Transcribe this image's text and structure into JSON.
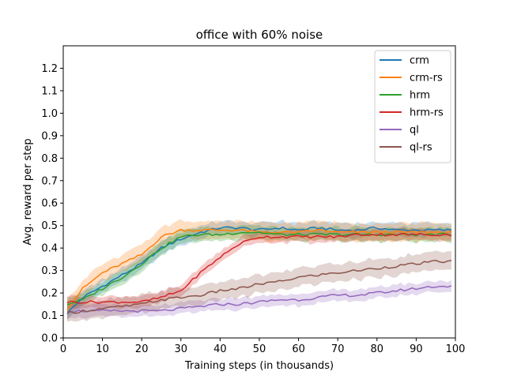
{
  "chart_data": {
    "type": "line",
    "title": "office with 60% noise",
    "xlabel": "Training steps (in thousands)",
    "ylabel": "Avg. reward per step",
    "xlim": [
      0,
      100
    ],
    "ylim": [
      0,
      1.3
    ],
    "xticks": [
      0,
      10,
      20,
      30,
      40,
      50,
      60,
      70,
      80,
      90,
      100
    ],
    "yticks": [
      0.0,
      0.1,
      0.2,
      0.3,
      0.4,
      0.5,
      0.6,
      0.7,
      0.8,
      0.9,
      1.0,
      1.1,
      1.2
    ],
    "grid": false,
    "legend_position": "top-right",
    "x": [
      1,
      5,
      10,
      15,
      20,
      25,
      30,
      35,
      40,
      45,
      50,
      55,
      60,
      65,
      70,
      75,
      80,
      85,
      90,
      95,
      99
    ],
    "series": [
      {
        "name": "crm",
        "color": "#1f77b4",
        "values": [
          0.11,
          0.18,
          0.23,
          0.28,
          0.33,
          0.4,
          0.44,
          0.47,
          0.49,
          0.49,
          0.48,
          0.49,
          0.48,
          0.49,
          0.48,
          0.48,
          0.49,
          0.48,
          0.48,
          0.48,
          0.48
        ],
        "band": 0.03
      },
      {
        "name": "crm-rs",
        "color": "#ff7f0e",
        "values": [
          0.13,
          0.22,
          0.29,
          0.33,
          0.37,
          0.45,
          0.48,
          0.48,
          0.48,
          0.48,
          0.47,
          0.47,
          0.47,
          0.48,
          0.47,
          0.47,
          0.47,
          0.47,
          0.47,
          0.47,
          0.47
        ],
        "band": 0.04
      },
      {
        "name": "hrm",
        "color": "#2ca02c",
        "values": [
          0.15,
          0.17,
          0.22,
          0.27,
          0.33,
          0.4,
          0.45,
          0.46,
          0.46,
          0.47,
          0.47,
          0.46,
          0.46,
          0.46,
          0.46,
          0.46,
          0.46,
          0.46,
          0.46,
          0.46,
          0.46
        ],
        "band": 0.03
      },
      {
        "name": "hrm-rs",
        "color": "#d62728",
        "values": [
          0.16,
          0.16,
          0.16,
          0.16,
          0.16,
          0.18,
          0.21,
          0.29,
          0.36,
          0.42,
          0.45,
          0.45,
          0.45,
          0.45,
          0.45,
          0.46,
          0.46,
          0.46,
          0.46,
          0.46,
          0.46
        ],
        "band": 0.025
      },
      {
        "name": "ql",
        "color": "#9467bd",
        "values": [
          0.12,
          0.12,
          0.12,
          0.12,
          0.12,
          0.12,
          0.13,
          0.14,
          0.15,
          0.15,
          0.16,
          0.17,
          0.17,
          0.18,
          0.19,
          0.19,
          0.2,
          0.21,
          0.22,
          0.23,
          0.23
        ],
        "band": 0.025
      },
      {
        "name": "ql-rs",
        "color": "#8c564b",
        "values": [
          0.11,
          0.12,
          0.13,
          0.14,
          0.15,
          0.17,
          0.18,
          0.19,
          0.21,
          0.22,
          0.24,
          0.25,
          0.27,
          0.28,
          0.29,
          0.3,
          0.31,
          0.32,
          0.33,
          0.34,
          0.34
        ],
        "band": 0.04
      }
    ]
  }
}
